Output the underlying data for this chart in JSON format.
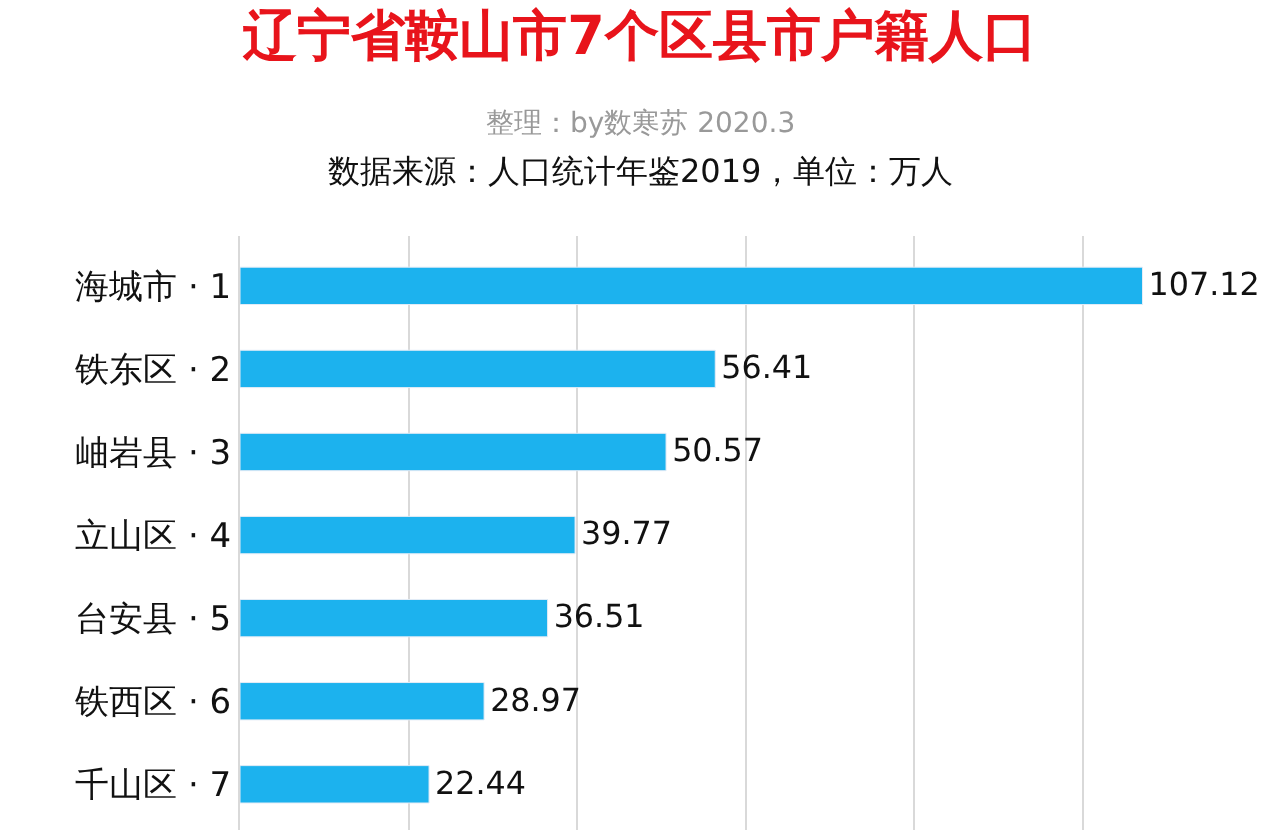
{
  "chart_data": {
    "type": "bar",
    "orientation": "horizontal",
    "title": "辽宁省鞍山市7个区县市户籍人口",
    "subtitle": "整理：by数寒苏 2020.3",
    "annotations": [
      "数据来源：人口统计年鉴2019，单位：万人"
    ],
    "categories": [
      "海城市 · 1",
      "铁东区 · 2",
      "岫岩县 · 3",
      "立山区 · 4",
      "台安县 · 5",
      "铁西区 · 6",
      "千山区 · 7"
    ],
    "values": [
      107.12,
      56.41,
      50.57,
      39.77,
      36.51,
      28.97,
      22.44
    ],
    "color": "#1cb2ee",
    "grid": "x",
    "tick_labels": "y",
    "data_labels": true
  }
}
